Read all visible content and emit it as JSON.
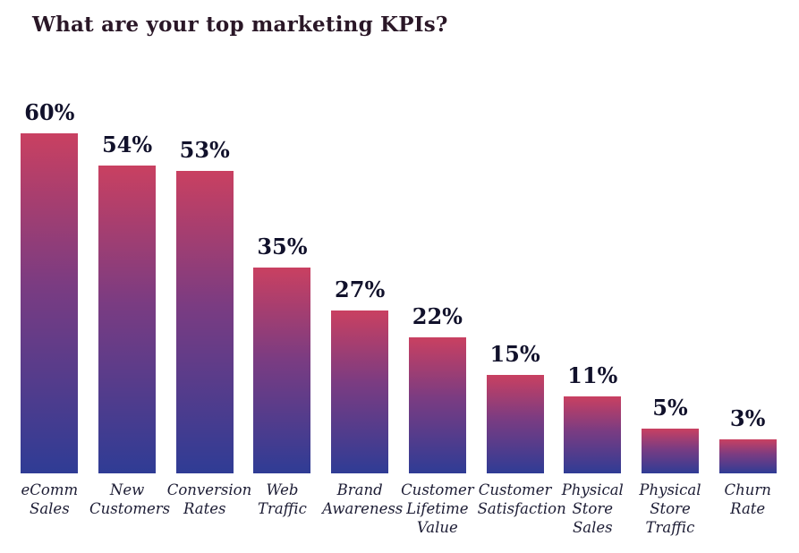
{
  "title": "What are your top marketing KPIs?",
  "colors": {
    "background": "#ffffff",
    "title_text": "#2a1727",
    "value_text": "#11112b",
    "category_text": "#1c1c34",
    "bar_gradient_top": "#c94061",
    "bar_gradient_mid": "#7a3c82",
    "bar_gradient_bottom": "#2f3c95"
  },
  "chart_data": {
    "type": "bar",
    "title": "What are your top marketing KPIs?",
    "categories": [
      "eComm Sales",
      "New Customers",
      "Conversion Rates",
      "Web Traffic",
      "Brand Awareness",
      "Customer Lifetime Value",
      "Customer Satisfaction",
      "Physical Store Sales",
      "Physical Store Traffic",
      "Churn Rate"
    ],
    "values": [
      60,
      54,
      53,
      35,
      27,
      22,
      15,
      11,
      5,
      3
    ],
    "unit": "%",
    "value_labels": [
      "60%",
      "54%",
      "53%",
      "35%",
      "27%",
      "22%",
      "15%",
      "11%",
      "5%",
      "3%"
    ],
    "xlabel": "",
    "ylabel": "",
    "ylim": [
      0,
      60
    ],
    "grid": false,
    "legend": "none",
    "bar_style": "vertical gradient from crimson at top to dark blue at bottom, flat square bars, value labels above bars, italic category labels below"
  }
}
